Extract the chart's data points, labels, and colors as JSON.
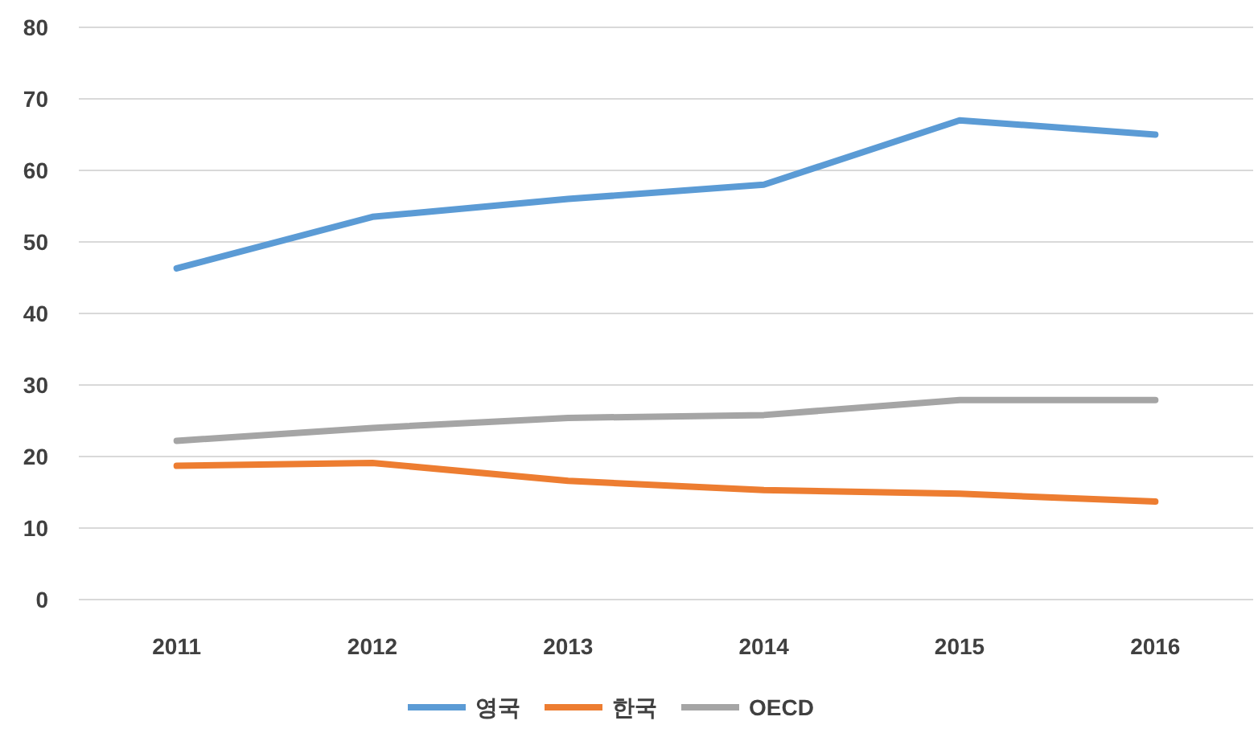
{
  "chart_data": {
    "type": "line",
    "categories": [
      "2011",
      "2012",
      "2013",
      "2014",
      "2015",
      "2016"
    ],
    "series": [
      {
        "name": "영국",
        "color": "#5b9bd5",
        "values": [
          46.3,
          53.5,
          56,
          58,
          67,
          65
        ]
      },
      {
        "name": "한국",
        "color": "#ed7d31",
        "values": [
          18.7,
          19.1,
          16.6,
          15.3,
          14.8,
          13.7
        ]
      },
      {
        "name": "OECD",
        "color": "#a5a5a5",
        "values": [
          22.2,
          24,
          25.4,
          25.8,
          27.9,
          27.9
        ]
      }
    ],
    "ylim": [
      0,
      80
    ],
    "yticks": [
      0,
      10,
      20,
      30,
      40,
      50,
      60,
      70,
      80
    ],
    "grid": "y",
    "legend": "bottom"
  }
}
